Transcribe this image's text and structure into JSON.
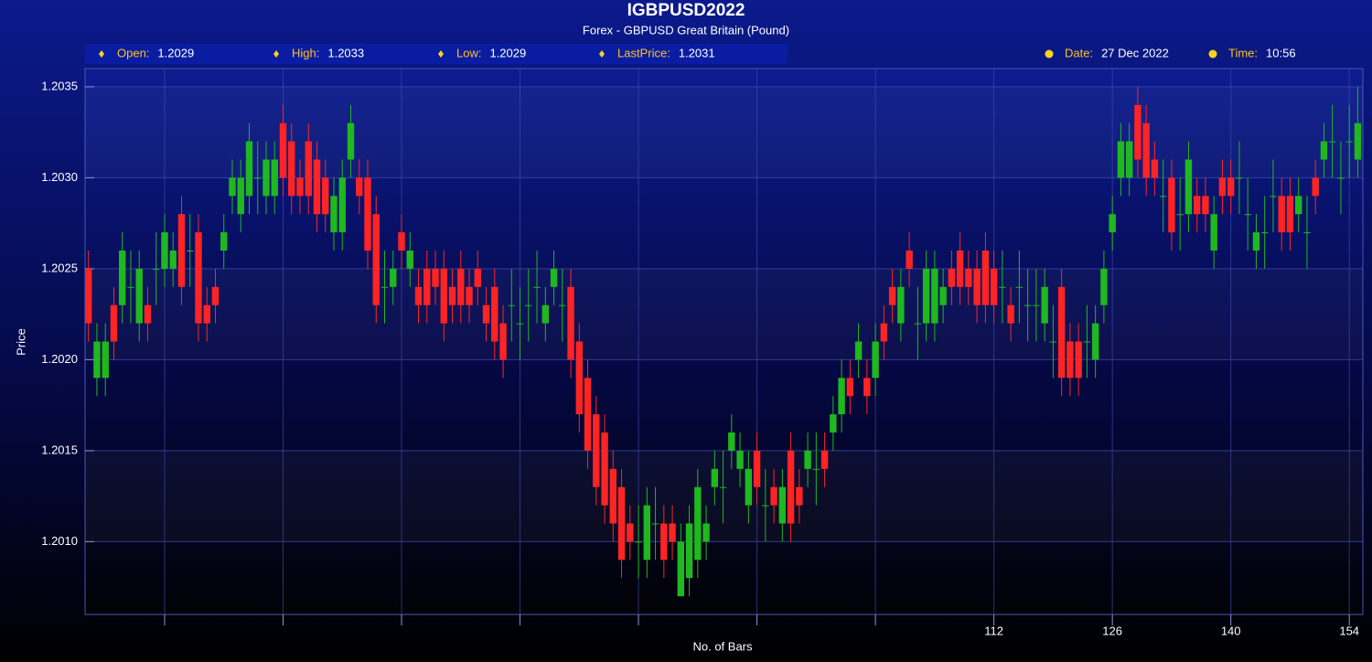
{
  "header": {
    "info": [
      {
        "label": "Open:",
        "value": 1.2029
      },
      {
        "label": "High:",
        "value": 1.2033
      },
      {
        "label": "Low:",
        "value": 1.2029
      },
      {
        "label": "LastPrice:",
        "value": 1.2031
      },
      {
        "label": "Date:",
        "value": "27 Dec 2022"
      },
      {
        "label": "Time:",
        "value": "10:56"
      }
    ]
  },
  "chart_data": {
    "type": "candlestick",
    "title": "IGBPUSD2022",
    "subtitle": "Forex - GBPUSD Great Britain (Pound)",
    "ylabel": "Price",
    "xlabel": "No. of Bars",
    "up_color": "#1fb81f",
    "down_color": "#ff2424",
    "grid": true,
    "xlim": [
      4.6,
      155.6
    ],
    "ylim": [
      1.2006,
      1.2036
    ],
    "yticks": [
      {
        "value": 1.201,
        "label": "1.2010"
      },
      1.2015,
      {
        "value": 1.202,
        "label": "1.2020"
      },
      1.2025,
      {
        "value": 1.203,
        "label": "1.2030"
      },
      1.2035
    ],
    "xticks": [
      112,
      126,
      140,
      154
    ],
    "xminorticks": [
      14,
      28,
      42,
      56,
      70,
      84,
      98
    ],
    "x": [
      5,
      6,
      7,
      8,
      9,
      10,
      11,
      12,
      13,
      14,
      15,
      16,
      17,
      18,
      19,
      20,
      21,
      22,
      23,
      24,
      25,
      26,
      27,
      28,
      29,
      30,
      31,
      32,
      33,
      34,
      35,
      36,
      37,
      38,
      39,
      40,
      41,
      42,
      43,
      44,
      45,
      46,
      47,
      48,
      49,
      50,
      51,
      52,
      53,
      54,
      55,
      56,
      57,
      58,
      59,
      60,
      61,
      62,
      63,
      64,
      65,
      66,
      67,
      68,
      69,
      70,
      71,
      72,
      73,
      74,
      75,
      76,
      77,
      78,
      79,
      80,
      81,
      82,
      83,
      84,
      85,
      86,
      87,
      88,
      89,
      90,
      91,
      92,
      93,
      94,
      95,
      96,
      97,
      98,
      99,
      100,
      101,
      102,
      103,
      104,
      105,
      106,
      107,
      108,
      109,
      110,
      111,
      112,
      113,
      114,
      115,
      116,
      117,
      118,
      119,
      120,
      121,
      122,
      123,
      124,
      125,
      126,
      127,
      128,
      129,
      130,
      131,
      132,
      133,
      134,
      135,
      136,
      137,
      138,
      139,
      140,
      141,
      142,
      143,
      144,
      145,
      146,
      147,
      148,
      149,
      150,
      151,
      152,
      153,
      154,
      155
    ],
    "open": [
      1.2025,
      1.2019,
      1.2019,
      1.2023,
      1.2023,
      1.2024,
      1.2022,
      1.2023,
      1.2025,
      1.2025,
      1.2025,
      1.2028,
      1.2026,
      1.2027,
      1.2023,
      1.2024,
      1.2026,
      1.2029,
      1.2028,
      1.2029,
      1.203,
      1.2029,
      1.2029,
      1.2033,
      1.2032,
      1.203,
      1.2032,
      1.2031,
      1.203,
      1.2027,
      1.2027,
      1.2031,
      1.203,
      1.203,
      1.2028,
      1.2024,
      1.2024,
      1.2027,
      1.2025,
      1.2024,
      1.2025,
      1.2025,
      1.2025,
      1.2024,
      1.2025,
      1.2024,
      1.2025,
      1.2023,
      1.2024,
      1.2022,
      1.2023,
      1.2022,
      1.2023,
      1.2024,
      1.2022,
      1.2024,
      1.2023,
      1.2024,
      1.2021,
      1.2019,
      1.2017,
      1.2016,
      1.2014,
      1.2013,
      1.2011,
      1.201,
      1.2009,
      1.2011,
      1.2011,
      1.2011,
      1.2007,
      1.2008,
      1.2009,
      1.201,
      1.2013,
      1.2013,
      1.2015,
      1.2014,
      1.2012,
      1.2015,
      1.2012,
      1.2013,
      1.2011,
      1.2015,
      1.2013,
      1.2014,
      1.2014,
      1.2015,
      1.2016,
      1.2017,
      1.2019,
      1.202,
      1.2019,
      1.2019,
      1.2022,
      1.2024,
      1.2022,
      1.2026,
      1.2022,
      1.2022,
      1.2022,
      1.2023,
      1.2025,
      1.2026,
      1.2025,
      1.2025,
      1.2026,
      1.2025,
      1.2024,
      1.2023,
      1.2024,
      1.2023,
      1.2023,
      1.2022,
      1.2021,
      1.2024,
      1.2021,
      1.2021,
      1.2021,
      1.202,
      1.2023,
      1.2027,
      1.203,
      1.203,
      1.2034,
      1.2033,
      1.2031,
      1.2029,
      1.203,
      1.2028,
      1.2028,
      1.2029,
      1.2029,
      1.2026,
      1.203,
      1.203,
      1.203,
      1.2028,
      1.2026,
      1.2027,
      1.2029,
      1.2029,
      1.2029,
      1.2028,
      1.2027,
      1.203,
      1.2031,
      1.2032,
      1.203,
      1.2032,
      1.2031
    ],
    "high": [
      1.2026,
      1.2022,
      1.2022,
      1.2024,
      1.2027,
      1.2026,
      1.2026,
      1.2024,
      1.2027,
      1.2028,
      1.2027,
      1.2029,
      1.2028,
      1.2028,
      1.2024,
      1.2025,
      1.2028,
      1.2031,
      1.2031,
      1.2033,
      1.2032,
      1.2032,
      1.2032,
      1.2034,
      1.2033,
      1.2031,
      1.2033,
      1.2032,
      1.2031,
      1.203,
      1.2031,
      1.2034,
      1.2031,
      1.2031,
      1.2029,
      1.2026,
      1.2026,
      1.2028,
      1.2027,
      1.2025,
      1.2026,
      1.2026,
      1.2026,
      1.2025,
      1.2026,
      1.2025,
      1.2026,
      1.2024,
      1.2025,
      1.2023,
      1.2025,
      1.2024,
      1.2025,
      1.2026,
      1.2024,
      1.2026,
      1.2025,
      1.2025,
      1.2022,
      1.202,
      1.2018,
      1.2017,
      1.2015,
      1.2014,
      1.2012,
      1.2012,
      1.2013,
      1.2013,
      1.2012,
      1.2012,
      1.2011,
      1.2012,
      1.2014,
      1.2012,
      1.2015,
      1.2015,
      1.2017,
      1.2016,
      1.2015,
      1.2016,
      1.2014,
      1.2014,
      1.2014,
      1.2016,
      1.2014,
      1.2016,
      1.2016,
      1.2016,
      1.2018,
      1.202,
      1.202,
      1.2022,
      1.202,
      1.2022,
      1.2023,
      1.2025,
      1.2025,
      1.2027,
      1.2024,
      1.2026,
      1.2026,
      1.2025,
      1.2026,
      1.2027,
      1.2026,
      1.2026,
      1.2027,
      1.2026,
      1.2026,
      1.2024,
      1.2026,
      1.2025,
      1.2025,
      1.2025,
      1.2023,
      1.2025,
      1.2022,
      1.2022,
      1.2023,
      1.2023,
      1.2026,
      1.2029,
      1.2033,
      1.2033,
      1.2035,
      1.2034,
      1.2032,
      1.2031,
      1.2031,
      1.203,
      1.2032,
      1.203,
      1.203,
      1.2029,
      1.2031,
      1.2031,
      1.2032,
      1.203,
      1.2028,
      1.2029,
      1.2031,
      1.203,
      1.203,
      1.203,
      1.2029,
      1.2031,
      1.2033,
      1.2034,
      1.2032,
      1.2034,
      1.2035
    ],
    "low": [
      1.2021,
      1.2018,
      1.2018,
      1.202,
      1.2022,
      1.2022,
      1.2021,
      1.2021,
      1.2023,
      1.2024,
      1.2024,
      1.2023,
      1.2024,
      1.2021,
      1.2021,
      1.2022,
      1.2025,
      1.2028,
      1.2027,
      1.2028,
      1.2028,
      1.2028,
      1.2028,
      1.2029,
      1.2028,
      1.2028,
      1.2028,
      1.2027,
      1.2027,
      1.2026,
      1.2026,
      1.203,
      1.2028,
      1.2025,
      1.2022,
      1.2022,
      1.2023,
      1.2025,
      1.2024,
      1.2022,
      1.2022,
      1.2023,
      1.2021,
      1.2022,
      1.2022,
      1.2022,
      1.2023,
      1.2021,
      1.202,
      1.2019,
      1.2021,
      1.202,
      1.2021,
      1.2022,
      1.2021,
      1.2023,
      1.2021,
      1.2019,
      1.2016,
      1.2014,
      1.2012,
      1.2011,
      1.201,
      1.2008,
      1.2009,
      1.2008,
      1.2008,
      1.2009,
      1.2008,
      1.2009,
      1.2007,
      1.2007,
      1.2008,
      1.2009,
      1.2012,
      1.2011,
      1.2014,
      1.2013,
      1.2011,
      1.2012,
      1.201,
      1.2011,
      1.201,
      1.201,
      1.2011,
      1.2013,
      1.2012,
      1.2013,
      1.2015,
      1.2016,
      1.2017,
      1.2019,
      1.2017,
      1.2018,
      1.202,
      1.2022,
      1.2021,
      1.2024,
      1.202,
      1.2021,
      1.2021,
      1.2022,
      1.2023,
      1.2023,
      1.2023,
      1.2022,
      1.2022,
      1.2022,
      1.2022,
      1.2021,
      1.2022,
      1.2021,
      1.2021,
      1.2021,
      1.2019,
      1.2018,
      1.2018,
      1.2018,
      1.2019,
      1.2019,
      1.2022,
      1.2026,
      1.2029,
      1.2029,
      1.203,
      1.2029,
      1.2029,
      1.2027,
      1.2026,
      1.2026,
      1.2027,
      1.2027,
      1.2027,
      1.2025,
      1.2028,
      1.2028,
      1.2028,
      1.2026,
      1.2025,
      1.2025,
      1.2027,
      1.2026,
      1.2026,
      1.2027,
      1.2025,
      1.2028,
      1.203,
      1.203,
      1.2028,
      1.203,
      1.203
    ],
    "close": [
      1.2022,
      1.2021,
      1.2021,
      1.2021,
      1.2026,
      1.2024,
      1.2025,
      1.2022,
      1.2025,
      1.2027,
      1.2026,
      1.2024,
      1.2026,
      1.2022,
      1.2022,
      1.2023,
      1.2027,
      1.203,
      1.203,
      1.2032,
      1.203,
      1.2031,
      1.2031,
      1.203,
      1.2029,
      1.2029,
      1.2029,
      1.2028,
      1.2028,
      1.2029,
      1.203,
      1.2033,
      1.2029,
      1.2026,
      1.2023,
      1.2024,
      1.2025,
      1.2026,
      1.2026,
      1.2023,
      1.2023,
      1.2024,
      1.2022,
      1.2023,
      1.2023,
      1.2023,
      1.2024,
      1.2022,
      1.2021,
      1.202,
      1.2023,
      1.2022,
      1.2023,
      1.2024,
      1.2023,
      1.2025,
      1.2023,
      1.202,
      1.2017,
      1.2015,
      1.2013,
      1.2012,
      1.2011,
      1.2009,
      1.201,
      1.201,
      1.2012,
      1.2011,
      1.2009,
      1.201,
      1.201,
      1.2011,
      1.2013,
      1.2011,
      1.2014,
      1.2013,
      1.2016,
      1.2015,
      1.2014,
      1.2013,
      1.2012,
      1.2012,
      1.2013,
      1.2011,
      1.2012,
      1.2015,
      1.2014,
      1.2014,
      1.2017,
      1.2019,
      1.2018,
      1.2021,
      1.2018,
      1.2021,
      1.2021,
      1.2023,
      1.2024,
      1.2025,
      1.2022,
      1.2025,
      1.2025,
      1.2024,
      1.2024,
      1.2024,
      1.2024,
      1.2023,
      1.2023,
      1.2023,
      1.2024,
      1.2022,
      1.2024,
      1.2023,
      1.2023,
      1.2024,
      1.2021,
      1.2019,
      1.2019,
      1.2019,
      1.2021,
      1.2022,
      1.2025,
      1.2028,
      1.2032,
      1.2032,
      1.2031,
      1.203,
      1.203,
      1.2029,
      1.2027,
      1.2028,
      1.2031,
      1.2028,
      1.2028,
      1.2028,
      1.2029,
      1.2029,
      1.203,
      1.2028,
      1.2027,
      1.2027,
      1.2029,
      1.2027,
      1.2027,
      1.2029,
      1.2027,
      1.2029,
      1.2032,
      1.2032,
      1.203,
      1.2032,
      1.2033
    ]
  }
}
